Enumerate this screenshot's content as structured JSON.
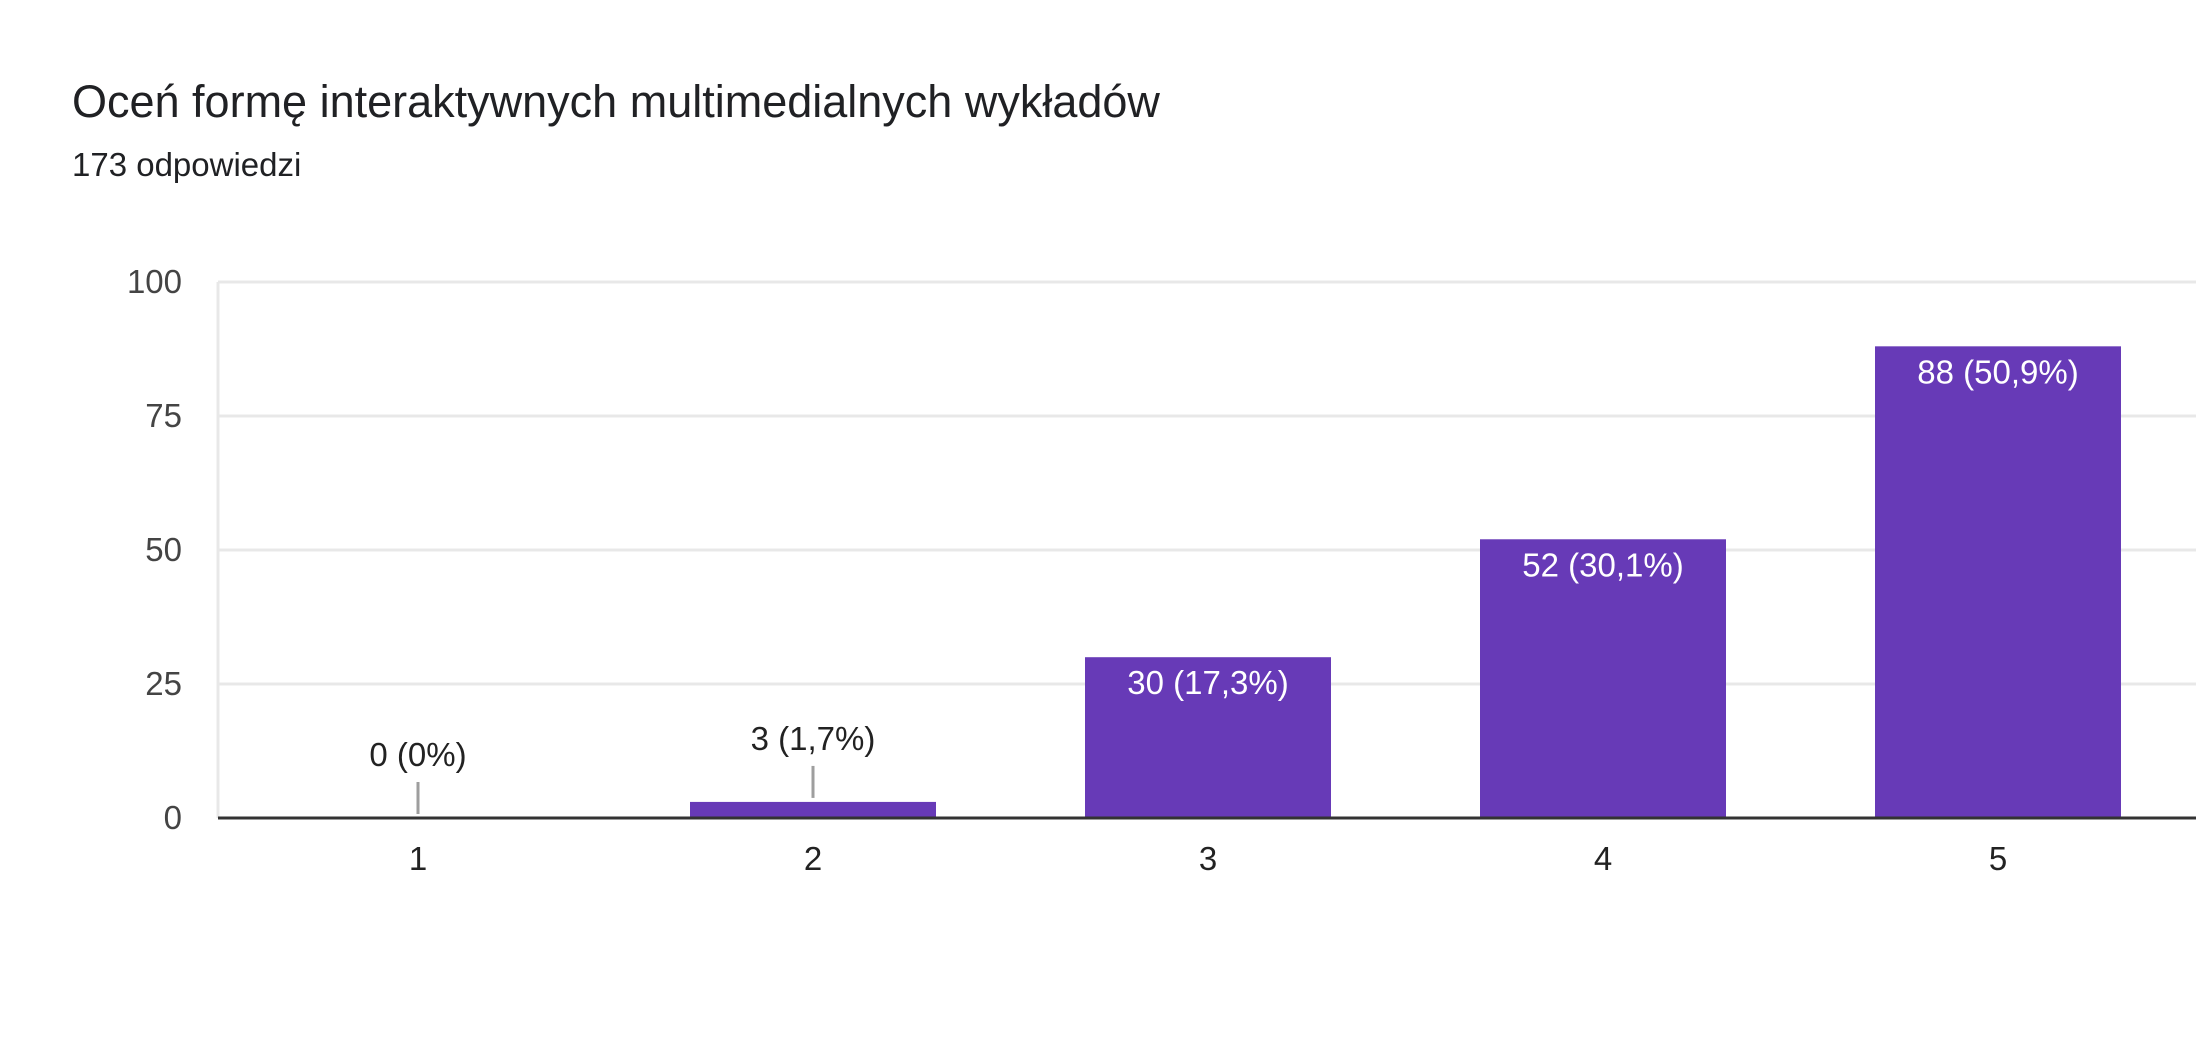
{
  "header": {
    "title": "Oceń formę interaktywnych multimedialnych wykładów",
    "subtitle": "173 odpowiedzi"
  },
  "chart_data": {
    "type": "bar",
    "title": "Oceń formę interaktywnych multimedialnych wykładów",
    "subtitle": "173 odpowiedzi",
    "categories": [
      "1",
      "2",
      "3",
      "4",
      "5"
    ],
    "values": [
      0,
      3,
      30,
      52,
      88
    ],
    "data_labels": [
      "0 (0%)",
      "3 (1,7%)",
      "30 (17,3%)",
      "52 (30,1%)",
      "88 (50,9%)"
    ],
    "ylim": [
      0,
      100
    ],
    "yticks": [
      0,
      25,
      50,
      75,
      100
    ],
    "grid": true,
    "colors": {
      "bar": "#673ab7",
      "grid": "#e8e8e8",
      "baseline": "#333333",
      "leader": "#9e9e9e"
    }
  }
}
